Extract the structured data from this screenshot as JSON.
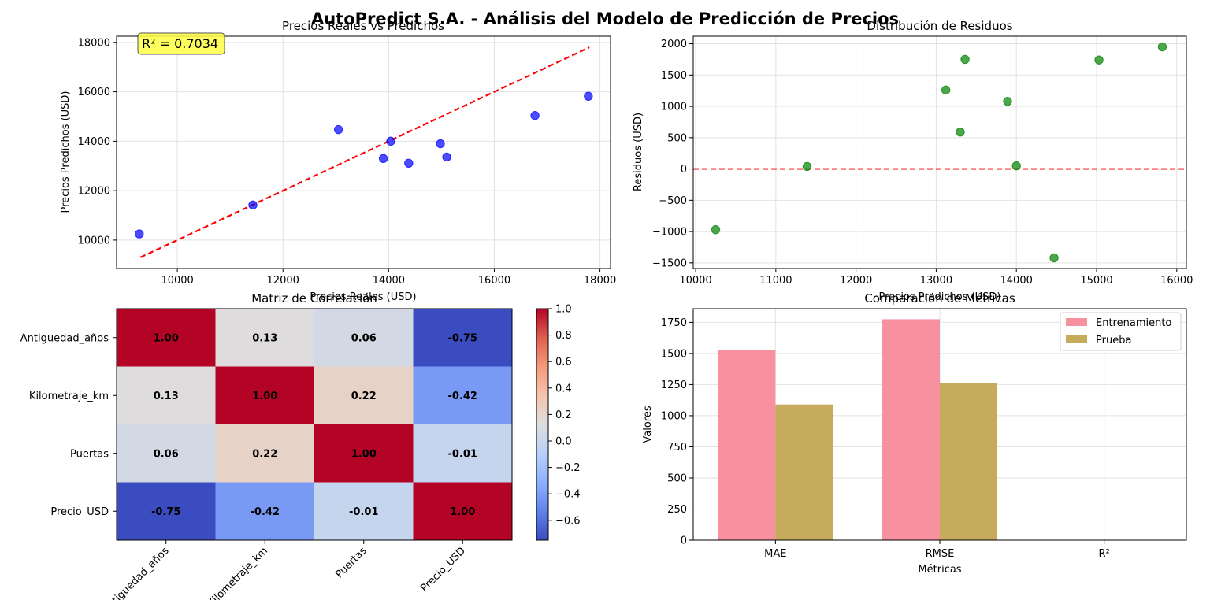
{
  "suptitle": "AutoPredict S.A. - Análisis del Modelo de Predicción de Precios",
  "colors": {
    "scatter_pred": "#0000ff",
    "scatter_resid": "#008000",
    "ref_line": "#ff0000",
    "bar_train": "#f7909f",
    "bar_test": "#c6ab5c",
    "r2_box": "#ffff44"
  },
  "chart_data": [
    {
      "type": "scatter",
      "title": "Precios Reales vs Predichos",
      "xlabel": "Precios Reales (USD)",
      "ylabel": "Precios Predichos (USD)",
      "xlim": [
        8850,
        18200
      ],
      "ylim": [
        8850,
        18250
      ],
      "xticks": [
        10000,
        12000,
        14000,
        16000,
        18000
      ],
      "yticks": [
        10000,
        12000,
        14000,
        16000,
        18000
      ],
      "grid": true,
      "annotation": "R² = 0.7034",
      "reference_line": {
        "from": [
          9300,
          9300
        ],
        "to": [
          17800,
          17800
        ]
      },
      "points": [
        {
          "x": 9280,
          "y": 10250
        },
        {
          "x": 11430,
          "y": 11420
        },
        {
          "x": 13050,
          "y": 14470
        },
        {
          "x": 13900,
          "y": 13300
        },
        {
          "x": 14040,
          "y": 14000
        },
        {
          "x": 14380,
          "y": 13110
        },
        {
          "x": 14980,
          "y": 13900
        },
        {
          "x": 15100,
          "y": 13360
        },
        {
          "x": 16770,
          "y": 15040
        },
        {
          "x": 17780,
          "y": 15820
        }
      ]
    },
    {
      "type": "scatter",
      "title": "Distribución de Residuos",
      "xlabel": "Precios Predichos (USD)",
      "ylabel": "Residuos (USD)",
      "xlim": [
        9970,
        16120
      ],
      "ylim": [
        -1590,
        2120
      ],
      "xticks": [
        10000,
        11000,
        12000,
        13000,
        14000,
        15000,
        16000
      ],
      "yticks": [
        -1500,
        -1000,
        -500,
        0,
        500,
        1000,
        1500,
        2000
      ],
      "grid": true,
      "zero_line": 0,
      "points": [
        {
          "x": 10250,
          "y": -970
        },
        {
          "x": 11390,
          "y": 40
        },
        {
          "x": 13120,
          "y": 1260
        },
        {
          "x": 13300,
          "y": 590
        },
        {
          "x": 13360,
          "y": 1750
        },
        {
          "x": 13890,
          "y": 1080
        },
        {
          "x": 14000,
          "y": 50
        },
        {
          "x": 14470,
          "y": -1420
        },
        {
          "x": 15030,
          "y": 1740
        },
        {
          "x": 15820,
          "y": 1950
        }
      ]
    },
    {
      "type": "heatmap",
      "title": "Matriz de Correlación",
      "labels": [
        "Antiguedad_años",
        "Kilometraje_km",
        "Puertas",
        "Precio_USD"
      ],
      "matrix": [
        [
          1.0,
          0.13,
          0.06,
          -0.75
        ],
        [
          0.13,
          1.0,
          0.22,
          -0.42
        ],
        [
          0.06,
          0.22,
          1.0,
          -0.01
        ],
        [
          -0.75,
          -0.42,
          -0.01,
          1.0
        ]
      ],
      "value_labels": [
        [
          "1.00",
          "0.13",
          "0.06",
          "-0.75"
        ],
        [
          "0.13",
          "1.00",
          "0.22",
          "-0.42"
        ],
        [
          "0.06",
          "0.22",
          "1.00",
          "-0.01"
        ],
        [
          "-0.75",
          "-0.42",
          "-0.01",
          "1.00"
        ]
      ],
      "colorbar_range": [
        -0.75,
        1.0
      ],
      "colorbar_ticks": [
        "1.0",
        "0.8",
        "0.6",
        "0.4",
        "0.2",
        "0.0",
        "−0.2",
        "−0.4",
        "−0.6"
      ],
      "colorbar_tick_values": [
        1.0,
        0.8,
        0.6,
        0.4,
        0.2,
        0.0,
        -0.2,
        -0.4,
        -0.6
      ],
      "colormap": "coolwarm"
    },
    {
      "type": "bar",
      "title": "Comparación de Métricas",
      "xlabel": "Métricas",
      "ylabel": "Valores",
      "categories": [
        "MAE",
        "RMSE",
        "R²"
      ],
      "ylim": [
        0,
        1860
      ],
      "yticks": [
        0,
        250,
        500,
        750,
        1000,
        1250,
        1500,
        1750
      ],
      "grid": true,
      "legend_position": "top-right",
      "series": [
        {
          "name": "Entrenamiento",
          "values": [
            1530,
            1775,
            0.8
          ]
        },
        {
          "name": "Prueba",
          "values": [
            1090,
            1265,
            0.7
          ]
        }
      ]
    }
  ]
}
